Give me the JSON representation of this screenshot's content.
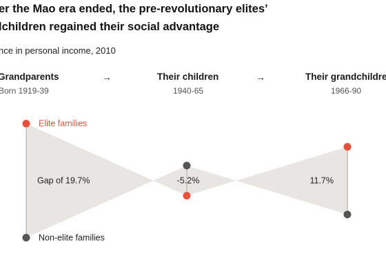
{
  "title_lines": [
    "er the Mao era ended, the pre-revolutionary elites’",
    "lchildren regained their social advantage"
  ],
  "subtitle": "nce in personal income, 2010",
  "arrow_glyph": "→",
  "colors": {
    "elite": "#e3533b",
    "non_elite": "#555555",
    "shade": "#e7e6e2",
    "line": "#bdbdbd"
  },
  "chart_data": {
    "type": "dot-range",
    "title": "er the Mao era ended, the pre-revolutionary elites’ lchildren regained their social advantage",
    "subtitle": "nce in personal income, 2010",
    "categories": [
      "Grandparents",
      "Their children",
      "Their grandchildren"
    ],
    "category_sublabels": [
      "Born 1919-39",
      "1940-65",
      "1966-90"
    ],
    "series": [
      {
        "name": "Elite families",
        "values": [
          9.85,
          -2.6,
          5.85
        ]
      },
      {
        "name": "Non-elite families",
        "values": [
          -9.85,
          2.6,
          -5.85
        ]
      }
    ],
    "gaps": [
      19.7,
      -5.2,
      11.7
    ],
    "gap_labels": [
      "Gap of 19.7%",
      "-5.2%",
      "11.7%"
    ],
    "ylim": [
      -11,
      11
    ]
  }
}
